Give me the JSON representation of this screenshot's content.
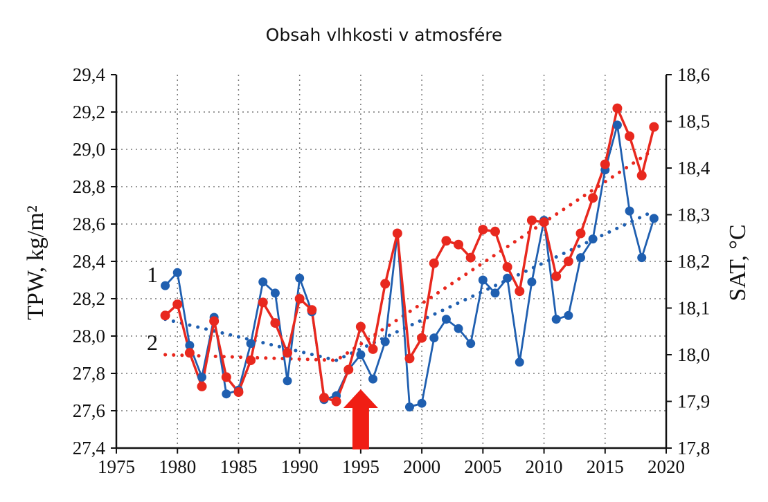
{
  "chart_data": {
    "type": "line",
    "title": "Obsah vlhkosti v atmosfére",
    "x_axis": {
      "range": [
        1975,
        2020
      ],
      "ticks": [
        1975,
        1980,
        1985,
        1990,
        1995,
        2000,
        2005,
        2010,
        2015,
        2020
      ],
      "tick_labels": [
        "1975",
        "1980",
        "1985",
        "1990",
        "1995",
        "2000",
        "2005",
        "2010",
        "2015",
        "2020"
      ]
    },
    "y_left": {
      "label": "TPW, kg/m²",
      "range": [
        27.4,
        29.4
      ],
      "ticks": [
        27.4,
        27.6,
        27.8,
        28.0,
        28.2,
        28.4,
        28.6,
        28.8,
        29.0,
        29.2,
        29.4
      ],
      "tick_labels": [
        "27,4",
        "27,6",
        "27,8",
        "28,0",
        "28,2",
        "28,4",
        "28,6",
        "28,8",
        "29,0",
        "29,2",
        "29,4"
      ]
    },
    "y_right": {
      "label": "SAT, °C",
      "range": [
        17.8,
        18.6
      ],
      "ticks": [
        17.8,
        17.9,
        18.0,
        18.1,
        18.2,
        18.3,
        18.4,
        18.5,
        18.6
      ],
      "tick_labels": [
        "17,8",
        "17,9",
        "18,0",
        "18,1",
        "18,2",
        "18,3",
        "18,4",
        "18,5",
        "18,6"
      ]
    },
    "grid": true,
    "series_labels": [
      "1",
      "2"
    ],
    "series": [
      {
        "label": "1",
        "axis": "left",
        "color": "#1f5fb0",
        "x": [
          1979,
          1980,
          1981,
          1982,
          1983,
          1984,
          1985,
          1986,
          1987,
          1988,
          1989,
          1990,
          1991,
          1992,
          1993,
          1994,
          1995,
          1996,
          1997,
          1998,
          1999,
          2000,
          2001,
          2002,
          2003,
          2004,
          2005,
          2006,
          2007,
          2008,
          2009,
          2010,
          2011,
          2012,
          2013,
          2014,
          2015,
          2016,
          2017,
          2018,
          2019
        ],
        "y": [
          28.27,
          28.34,
          27.95,
          27.78,
          28.1,
          27.69,
          27.71,
          27.96,
          28.29,
          28.23,
          27.76,
          28.31,
          28.13,
          27.66,
          27.68,
          27.82,
          27.9,
          27.77,
          27.97,
          28.55,
          27.62,
          27.64,
          27.99,
          28.09,
          28.04,
          27.96,
          28.3,
          28.23,
          28.31,
          27.86,
          28.29,
          28.62,
          28.09,
          28.11,
          28.42,
          28.52,
          28.89,
          29.13,
          28.67,
          28.42,
          28.63
        ],
        "trend_x": [
          1979,
          1993,
          2019
        ],
        "trend_y": [
          28.09,
          27.87,
          28.67
        ]
      },
      {
        "label": "2",
        "axis": "right",
        "color": "#e8281e",
        "x": [
          1979,
          1980,
          1981,
          1982,
          1983,
          1984,
          1985,
          1986,
          1987,
          1988,
          1989,
          1990,
          1991,
          1992,
          1993,
          1994,
          1995,
          1996,
          1997,
          1998,
          1999,
          2000,
          2001,
          2002,
          2003,
          2004,
          2005,
          2006,
          2007,
          2008,
          2009,
          2010,
          2011,
          2012,
          2013,
          2014,
          2015,
          2016,
          2017,
          2018,
          2019
        ],
        "y": [
          18.084,
          18.108,
          18.004,
          17.932,
          18.072,
          17.952,
          17.92,
          17.988,
          18.112,
          18.068,
          18.004,
          18.12,
          18.096,
          17.908,
          17.9,
          17.968,
          18.06,
          18.012,
          18.152,
          18.26,
          17.992,
          18.036,
          18.196,
          18.244,
          18.236,
          18.208,
          18.268,
          18.264,
          18.188,
          18.136,
          18.288,
          18.284,
          18.168,
          18.2,
          18.26,
          18.336,
          18.408,
          18.528,
          18.468,
          18.384,
          18.488
        ],
        "trend_x": [
          1979,
          1993,
          2019
        ],
        "trend_y": [
          18.0,
          17.988,
          18.44
        ]
      }
    ],
    "annotation": {
      "type": "arrow-up",
      "x": 1995,
      "color": "#f01e14"
    }
  }
}
